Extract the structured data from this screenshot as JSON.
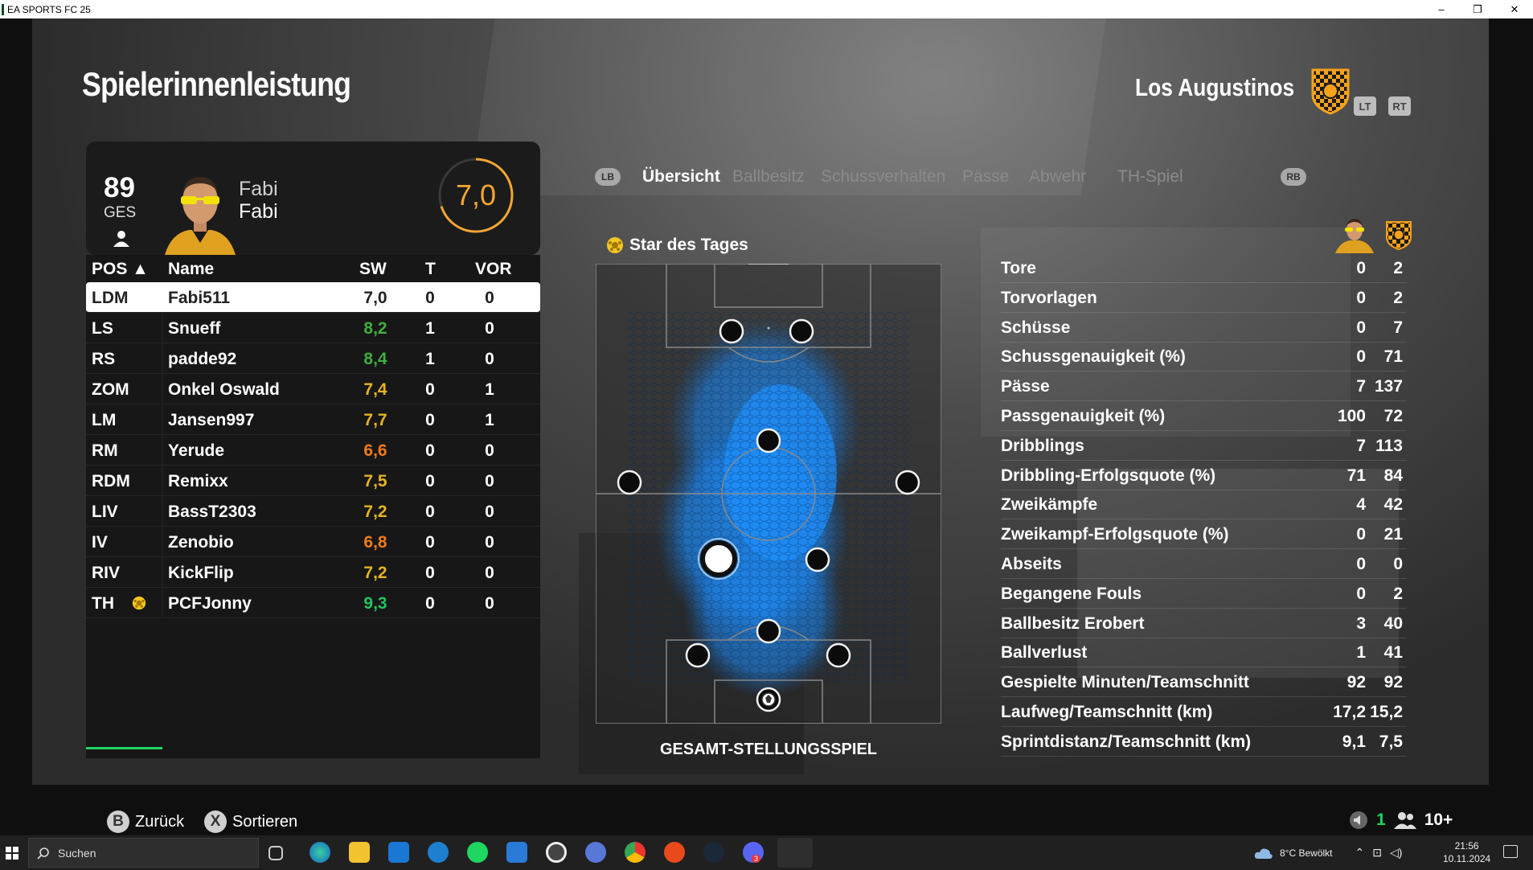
{
  "window": {
    "title": "EA SPORTS FC 25",
    "minimize": "–",
    "maximize": "❐",
    "close": "✕"
  },
  "page_title": "Spielerinnenleistung",
  "team": {
    "name": "Los Augustinos",
    "lt": "LT",
    "rt": "RT"
  },
  "player_card": {
    "overall": "89",
    "overall_label": "GES",
    "first_name": "Fabi",
    "last_name": "Fabi",
    "match_rating": "7,0",
    "rating_fraction": 0.7
  },
  "table": {
    "headers": {
      "pos": "POS ▲",
      "name": "Name",
      "sw": "SW",
      "t": "T",
      "vor": "VOR"
    },
    "rows": [
      {
        "pos": "LDM",
        "name": "Fabi511",
        "sw": "7,0",
        "t": "0",
        "vor": "0",
        "sw_color": "#222222",
        "selected": true
      },
      {
        "pos": "LS",
        "name": "Snueff",
        "sw": "8,2",
        "t": "1",
        "vor": "0",
        "sw_color": "#3fae3f"
      },
      {
        "pos": "RS",
        "name": "padde92",
        "sw": "8,4",
        "t": "1",
        "vor": "0",
        "sw_color": "#3fae3f"
      },
      {
        "pos": "ZOM",
        "name": "Onkel Oswald",
        "sw": "7,4",
        "t": "0",
        "vor": "1",
        "sw_color": "#e6b422"
      },
      {
        "pos": "LM",
        "name": "Jansen997",
        "sw": "7,7",
        "t": "0",
        "vor": "1",
        "sw_color": "#e6b422"
      },
      {
        "pos": "RM",
        "name": "Yerude",
        "sw": "6,6",
        "t": "0",
        "vor": "0",
        "sw_color": "#f07b1a"
      },
      {
        "pos": "RDM",
        "name": "Remixx",
        "sw": "7,5",
        "t": "0",
        "vor": "0",
        "sw_color": "#e6b422"
      },
      {
        "pos": "LIV",
        "name": "BassT2303",
        "sw": "7,2",
        "t": "0",
        "vor": "0",
        "sw_color": "#e6b422"
      },
      {
        "pos": "IV",
        "name": "Zenobio",
        "sw": "6,8",
        "t": "0",
        "vor": "0",
        "sw_color": "#f07b1a"
      },
      {
        "pos": "RIV",
        "name": "KickFlip",
        "sw": "7,2",
        "t": "0",
        "vor": "0",
        "sw_color": "#e6b422"
      },
      {
        "pos": "TH",
        "name": "PCFJonny",
        "sw": "9,3",
        "t": "0",
        "vor": "0",
        "sw_color": "#22c55e",
        "star": true
      }
    ]
  },
  "tabs": {
    "lb": "LB",
    "rb": "RB",
    "items": [
      "Übersicht",
      "Ballbesitz",
      "Schussverhalten",
      "Pässe",
      "Abwehr",
      "TH-Spiel"
    ],
    "active": 0
  },
  "star_of_day": "Star des Tages",
  "pitch_caption": "GESAMT-STELLUNGSSPIEL",
  "stats": [
    {
      "label": "Tore",
      "player": "0",
      "team": "2"
    },
    {
      "label": "Torvorlagen",
      "player": "0",
      "team": "2"
    },
    {
      "label": "Schüsse",
      "player": "0",
      "team": "7"
    },
    {
      "label": "Schussgenauigkeit (%)",
      "player": "0",
      "team": "71"
    },
    {
      "label": "Pässe",
      "player": "7",
      "team": "137"
    },
    {
      "label": "Passgenauigkeit (%)",
      "player": "100",
      "team": "72"
    },
    {
      "label": "Dribblings",
      "player": "7",
      "team": "113"
    },
    {
      "label": "Dribbling-Erfolgsquote (%)",
      "player": "71",
      "team": "84"
    },
    {
      "label": "Zweikämpfe",
      "player": "4",
      "team": "42"
    },
    {
      "label": "Zweikampf-Erfolgsquote (%)",
      "player": "0",
      "team": "21"
    },
    {
      "label": "Abseits",
      "player": "0",
      "team": "0"
    },
    {
      "label": "Begangene Fouls",
      "player": "0",
      "team": "2"
    },
    {
      "label": "Ballbesitz Erobert",
      "player": "3",
      "team": "40"
    },
    {
      "label": "Ballverlust",
      "player": "1",
      "team": "41"
    },
    {
      "label": "Gespielte Minuten/Teamschnitt",
      "player": "92",
      "team": "92"
    },
    {
      "label": "Laufweg/Teamschnitt (km)",
      "player": "17,2",
      "team": "15,2"
    },
    {
      "label": "Sprintdistanz/Teamschnitt (km)",
      "player": "9,1",
      "team": "7,5"
    }
  ],
  "footer": {
    "back_key": "B",
    "back_label": "Zurück",
    "sort_key": "X",
    "sort_label": "Sortieren",
    "voice_count": "1",
    "party_count": "10+"
  },
  "taskbar": {
    "search_placeholder": "Suchen",
    "weather": "8°C  Bewölkt",
    "time": "21:56",
    "date": "10.11.2024",
    "notification_badge": "3"
  },
  "colors": {
    "accent_green": "#1ed660",
    "rating_orange": "#f3a630",
    "heatmap_blue": "#1e90ff",
    "crest_orange": "#f7a21b"
  }
}
